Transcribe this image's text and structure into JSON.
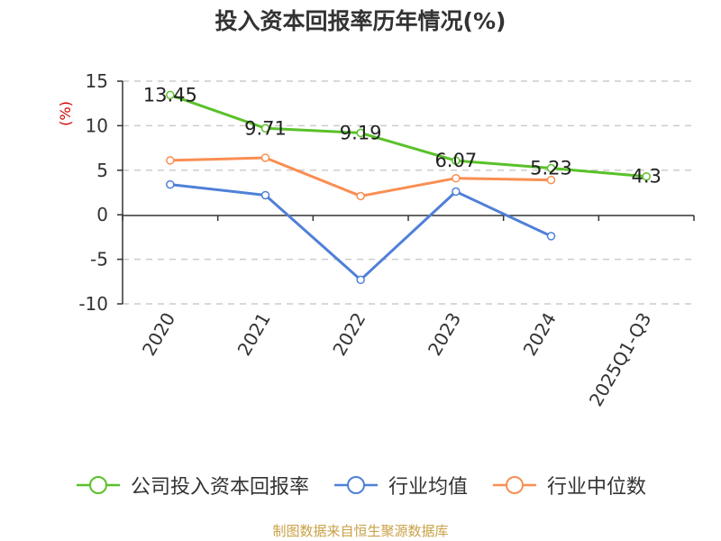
{
  "chart_data": {
    "type": "line",
    "title": "投入资本回报率历年情况(%)",
    "ylabel": "(%)",
    "xlabel": "",
    "categories": [
      "2020",
      "2021",
      "2022",
      "2023",
      "2024",
      "2025Q1-Q3"
    ],
    "ylim": [
      -10,
      15
    ],
    "yticks": [
      15,
      10,
      5,
      0,
      -5,
      -10
    ],
    "grid": true,
    "legend_position": "bottom",
    "series": [
      {
        "name": "公司投入资本回报率",
        "color": "#5ac129",
        "values": [
          13.45,
          9.71,
          9.19,
          6.07,
          5.23,
          4.3
        ],
        "labels": [
          "13.45",
          "9.71",
          "9.19",
          "6.07",
          "5.23",
          "4.3"
        ]
      },
      {
        "name": "行业均值",
        "color": "#4f80d8",
        "values": [
          3.4,
          2.2,
          -7.3,
          2.6,
          -2.4,
          null
        ]
      },
      {
        "name": "行业中位数",
        "color": "#f98e52",
        "values": [
          6.1,
          6.4,
          2.1,
          4.1,
          3.9,
          null
        ]
      }
    ]
  },
  "source": "制图数据来自恒生聚源数据库"
}
